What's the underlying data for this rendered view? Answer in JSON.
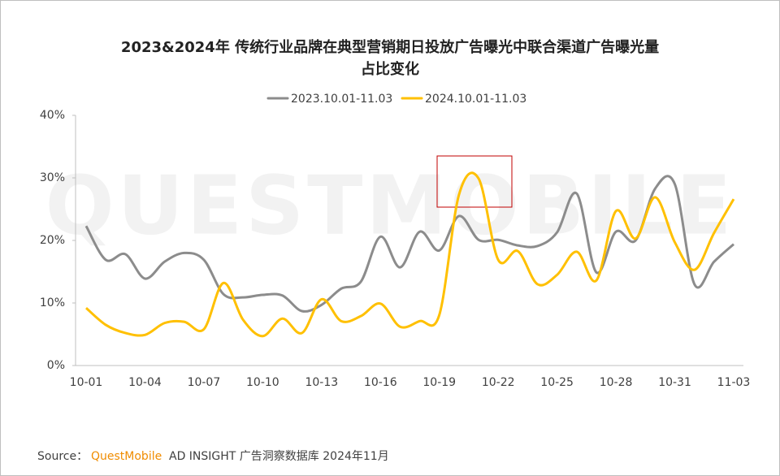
{
  "chart_data": {
    "type": "line",
    "title": [
      "2023&2024年 传统行业品牌在典型营销期日投放广告曝光中联合渠道广告曝光量",
      "占比变化"
    ],
    "categories": [
      "10-01",
      null,
      null,
      "10-04",
      null,
      null,
      "10-07",
      null,
      null,
      "10-10",
      null,
      null,
      "10-13",
      null,
      null,
      "10-16",
      null,
      null,
      "10-19",
      null,
      null,
      "10-22",
      null,
      null,
      "10-25",
      null,
      null,
      "10-28",
      null,
      null,
      "10-31",
      null,
      null,
      "11-03"
    ],
    "series": [
      {
        "name": "2023.10.01-11.03",
        "color": "#8c8c8c",
        "values": [
          22.3,
          16.9,
          17.8,
          13.9,
          16.6,
          18.0,
          16.9,
          11.4,
          10.9,
          11.3,
          11.2,
          8.7,
          9.7,
          12.3,
          13.4,
          20.6,
          15.7,
          21.4,
          18.4,
          23.9,
          20.1,
          20.1,
          19.2,
          19.1,
          21.3,
          27.5,
          14.9,
          21.4,
          20.0,
          28.3,
          29.0,
          13.0,
          16.6,
          19.4
        ]
      },
      {
        "name": "2024.10.01-11.03",
        "color": "#ffc000",
        "values": [
          9.2,
          6.5,
          5.2,
          4.9,
          6.8,
          7.0,
          5.8,
          13.2,
          7.3,
          4.7,
          7.5,
          5.2,
          10.6,
          7.1,
          7.9,
          9.9,
          6.2,
          7.1,
          8.1,
          27.3,
          29.9,
          16.9,
          18.3,
          13.0,
          14.5,
          18.2,
          13.6,
          24.7,
          20.3,
          26.9,
          19.7,
          15.3,
          21.2,
          26.6
        ]
      }
    ],
    "ylim": [
      0,
      40
    ],
    "yticks": [
      {
        "value": 0,
        "label": "0%"
      },
      {
        "value": 10,
        "label": "10%"
      },
      {
        "value": 20,
        "label": "20%"
      },
      {
        "value": 30,
        "label": "30%"
      },
      {
        "value": 40,
        "label": "40%"
      }
    ],
    "legend": "top",
    "watermark": "QUESTMOBILE",
    "source": {
      "prefix": "Source：",
      "brand": "QuestMobile",
      "text": "AD INSIGHT 广告洞察数据库 2024年11月"
    }
  }
}
